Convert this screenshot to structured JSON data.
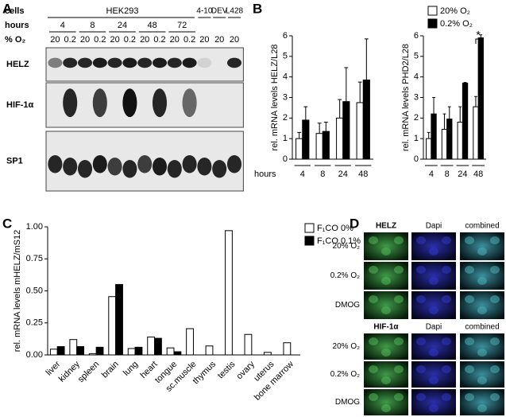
{
  "panel_labels": [
    "A",
    "B",
    "C",
    "D"
  ],
  "blot": {
    "row_labels": [
      "cells",
      "hours",
      "% O₂"
    ],
    "cell_lines": [
      "HEK293",
      "4-10",
      "DEV",
      "L428"
    ],
    "hours": [
      "4",
      "8",
      "24",
      "48",
      "72"
    ],
    "oxygen": [
      "20",
      "0.2",
      "20",
      "0.2",
      "20",
      "0.2",
      "20",
      "0.2",
      "20",
      "0.2",
      "20",
      "20",
      "20"
    ],
    "proteins": [
      "HELZ",
      "HIF-1α",
      "SP1"
    ]
  },
  "chart_data": [
    {
      "type": "bar",
      "ylabel": "rel. mRNA levels HELZ/L28",
      "xlabel": "hours",
      "categories": [
        "4",
        "8",
        "24",
        "48"
      ],
      "ylim": [
        0,
        6
      ],
      "yticks": [
        0,
        1,
        2,
        3,
        4,
        5,
        6
      ],
      "series": [
        {
          "color": "#ffffff",
          "values": [
            1.0,
            1.25,
            2.0,
            2.75
          ],
          "errors": [
            0.3,
            0.5,
            0.9,
            1.0
          ]
        },
        {
          "color": "#000000",
          "values": [
            1.9,
            1.35,
            2.8,
            3.85
          ],
          "errors": [
            0.65,
            0.45,
            1.65,
            2.0
          ]
        }
      ]
    },
    {
      "type": "bar",
      "ylabel": "rel. mRNA levels PHD2/L28",
      "categories": [
        "4",
        "8",
        "24",
        "48"
      ],
      "ylim": [
        0,
        6
      ],
      "yticks": [
        0,
        1,
        2,
        3,
        4,
        5,
        6
      ],
      "annotation": "*",
      "legend": "top-left",
      "series": [
        {
          "name": "20% O₂",
          "color": "#ffffff",
          "values": [
            1.0,
            1.45,
            1.8,
            2.55
          ],
          "errors": [
            0.3,
            0.75,
            0.75,
            0.5
          ]
        },
        {
          "name": "0.2% O₂",
          "color": "#000000",
          "values": [
            2.2,
            1.95,
            3.7,
            5.9
          ],
          "errors": [
            0.8,
            0.6,
            0.03,
            0.15
          ]
        }
      ]
    },
    {
      "type": "bar",
      "ylabel": "rel. mRNA levels mHELZ/mS12",
      "legend": "top-right",
      "categories": [
        "liver",
        "kidney",
        "spleen",
        "brain",
        "lung",
        "heart",
        "tongue",
        "sc.muscle",
        "thymus",
        "testis",
        "ovary",
        "uterus",
        "bone marrow"
      ],
      "ylim": [
        0,
        1
      ],
      "yticks": [
        {
          "value": 0,
          "label": "0.00"
        },
        {
          "value": 0.25,
          "label": "0.25"
        },
        {
          "value": 0.5,
          "label": "0.50"
        },
        {
          "value": 0.75,
          "label": "0.75"
        },
        {
          "value": 1,
          "label": "1.00"
        }
      ],
      "series": [
        {
          "name": "F₁CO 0%",
          "color": "#ffffff",
          "values": [
            0.045,
            0.12,
            0.01,
            0.455,
            0.05,
            0.14,
            0.055,
            0.205,
            0.07,
            0.97,
            0.16,
            0.02,
            0.095
          ]
        },
        {
          "name": "F₁CO 0.1%",
          "color": "#000000",
          "values": [
            0.065,
            0.065,
            0.06,
            0.55,
            0.06,
            0.13,
            0.025,
            null,
            null,
            null,
            null,
            null,
            null
          ]
        }
      ]
    }
  ],
  "micrographs": [
    {
      "columns": [
        "HELZ",
        "Dapi",
        "combined"
      ],
      "rows": [
        "20% O₂",
        "0.2% O₂",
        "DMOG"
      ]
    },
    {
      "columns": [
        "HIF-1α",
        "Dapi",
        "combined"
      ],
      "rows": [
        "20% O₂",
        "0.2% O₂",
        "DMOG"
      ]
    }
  ]
}
